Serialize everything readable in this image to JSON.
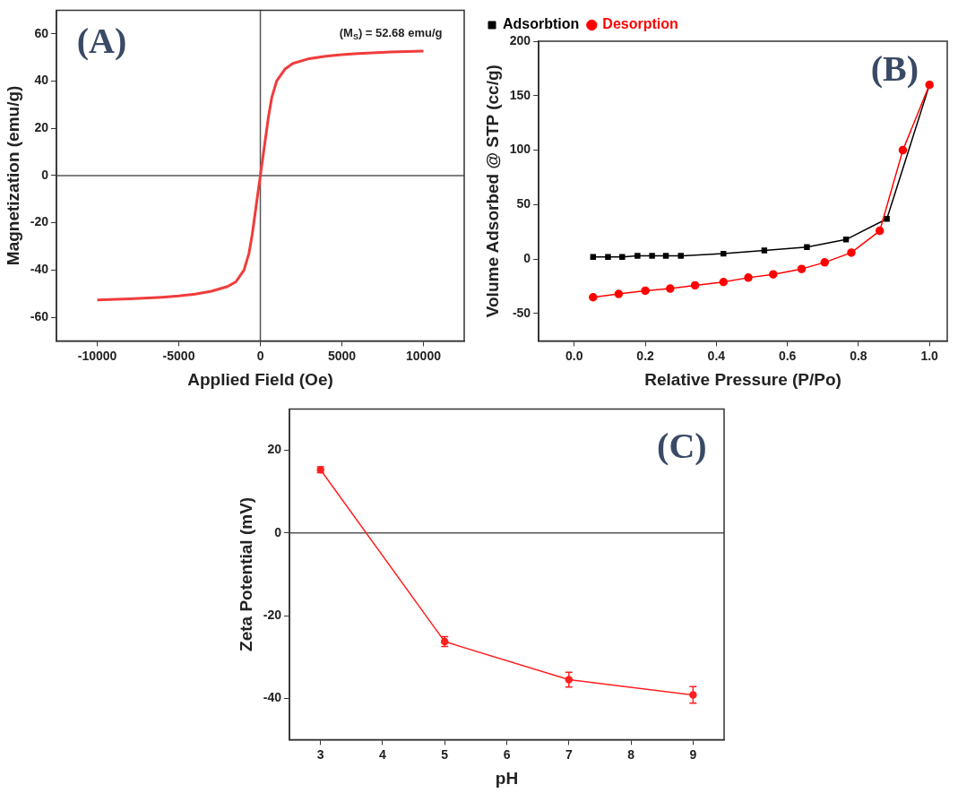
{
  "chart_data": [
    {
      "type": "line",
      "xlabel": "Applied Field (Oe)",
      "ylabel": "Magnetization (emu/g)",
      "xlim": [
        -12500,
        12500
      ],
      "xticks": [
        -10000,
        -5000,
        0,
        5000,
        10000
      ],
      "ylim": [
        -70,
        70
      ],
      "yticks": [
        -60,
        -40,
        -20,
        0,
        20,
        40,
        60
      ],
      "grid": false,
      "legend": false,
      "marker": "none",
      "x": [
        -10000,
        -8000,
        -6000,
        -5000,
        -4000,
        -3000,
        -2000,
        -1500,
        -1000,
        -700,
        -500,
        -300,
        -100,
        0,
        100,
        300,
        500,
        700,
        1000,
        1500,
        2000,
        3000,
        4000,
        5000,
        6000,
        8000,
        10000
      ],
      "series": [
        {
          "color": "#f03c3c",
          "values": [
            -52.7,
            -52.2,
            -51.5,
            -51,
            -50.2,
            -49,
            -47,
            -45,
            -40,
            -33,
            -25,
            -15,
            -5,
            0,
            5,
            15,
            25,
            33,
            40,
            45,
            47.5,
            49.5,
            50.5,
            51.2,
            51.7,
            52.3,
            52.7
          ]
        }
      ],
      "ref_lines": [
        {
          "axis": "x",
          "value": 0,
          "color": "#555555"
        },
        {
          "axis": "y",
          "value": 0,
          "color": "#555555"
        }
      ],
      "annotations": [
        "(A)",
        "(M$_{S}$) = 52.68 emu/g"
      ]
    },
    {
      "type": "line",
      "xlabel": "Relative Pressure (P/Po)",
      "ylabel": "Volume Adsorbed @ STP (cc/g)",
      "xlim": [
        -0.1,
        1.05
      ],
      "xticks": [
        {
          "value": 0,
          "label": "0.0"
        },
        0.2,
        0.4,
        0.6,
        0.8,
        {
          "value": 1,
          "label": "1.0"
        }
      ],
      "ylim": [
        -75,
        200
      ],
      "yticks": [
        -50,
        0,
        50,
        100,
        150,
        200
      ],
      "grid": false,
      "legend": "top left",
      "series": [
        {
          "name": "Adsorbtion",
          "color": "#000000",
          "marker": "square",
          "x": [
            0.053,
            0.095,
            0.135,
            0.178,
            0.219,
            0.258,
            0.3,
            0.42,
            0.535,
            0.655,
            0.765,
            0.88,
            1.0
          ],
          "values": [
            2,
            2,
            2,
            3,
            3,
            3,
            3,
            5,
            8,
            11,
            18,
            37,
            160
          ]
        },
        {
          "name": "Desorption",
          "color": "#ff0000",
          "marker": "circle",
          "x": [
            0.053,
            0.125,
            0.2,
            0.27,
            0.34,
            0.42,
            0.49,
            0.56,
            0.64,
            0.705,
            0.78,
            0.86,
            0.925,
            1.0
          ],
          "values": [
            -35,
            -32,
            -29,
            -27,
            -24,
            -21,
            -17,
            -14,
            -9,
            -3,
            6,
            26,
            100,
            160
          ]
        }
      ],
      "annotations": [
        "(B)"
      ]
    },
    {
      "type": "line",
      "xlabel": "pH",
      "ylabel": "Zeta Potential (mV)",
      "xlim": [
        2.5,
        9.5
      ],
      "xticks": [
        3,
        4,
        5,
        6,
        7,
        8,
        9
      ],
      "ylim": [
        -50,
        30
      ],
      "yticks": [
        -40,
        -20,
        0,
        20
      ],
      "grid": false,
      "legend": false,
      "marker": "circle",
      "x": [
        3,
        5,
        7,
        9
      ],
      "series": [
        {
          "color": "#ff2020",
          "values": [
            15.3,
            -26.3,
            -35.5,
            -39.2
          ],
          "errors": [
            0.7,
            1.2,
            1.8,
            2
          ]
        }
      ],
      "ref_lines": [
        {
          "axis": "y",
          "value": 0,
          "color": "#555555"
        }
      ],
      "annotations": [
        "(C)"
      ]
    }
  ]
}
